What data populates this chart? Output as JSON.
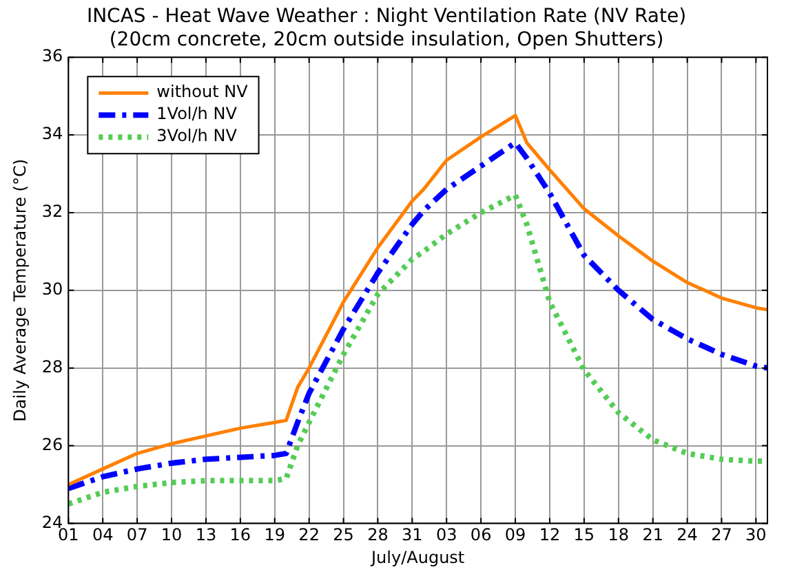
{
  "chart_data": {
    "type": "line",
    "title": "INCAS - Heat Wave Weather : Night Ventilation Rate (NV Rate)",
    "subtitle": "(20cm concrete, 20cm outside insulation, Open Shutters)",
    "xlabel": "July/August",
    "ylabel": "Daily Average Temperature (°C)",
    "x": [
      "--07-01",
      "--07-04",
      "--07-07",
      "--07-10",
      "--07-13",
      "--07-16",
      "--07-19",
      "--07-20",
      "--07-21",
      "--07-22",
      "--07-25",
      "--07-28",
      "--07-31",
      "--08-01",
      "--08-03",
      "--08-06",
      "--08-09",
      "--08-10",
      "--08-12",
      "--08-15",
      "--08-18",
      "--08-21",
      "--08-24",
      "--08-27",
      "--08-30",
      "--08-31"
    ],
    "series": [
      {
        "name": "without NV",
        "color": "#ff8000",
        "line_style": "solid",
        "values": [
          25.0,
          25.4,
          25.8,
          26.05,
          26.25,
          26.45,
          26.6,
          26.65,
          27.5,
          28.0,
          29.7,
          31.1,
          32.3,
          32.6,
          33.35,
          33.95,
          34.5,
          33.8,
          33.1,
          32.1,
          31.4,
          30.75,
          30.2,
          29.8,
          29.55,
          29.5
        ]
      },
      {
        "name": "1Vol/h NV",
        "color": "#0000ff",
        "line_style": "dashed",
        "values": [
          24.9,
          25.2,
          25.4,
          25.55,
          25.65,
          25.7,
          25.75,
          25.8,
          26.6,
          27.35,
          29.0,
          30.45,
          31.7,
          32.05,
          32.6,
          33.2,
          33.8,
          33.4,
          32.5,
          30.9,
          30.0,
          29.25,
          28.75,
          28.35,
          28.05,
          28.0
        ]
      },
      {
        "name": "3Vol/h NV",
        "color": "#55cc55",
        "line_style": "dotted",
        "values": [
          24.5,
          24.8,
          24.95,
          25.05,
          25.1,
          25.1,
          25.1,
          25.15,
          26.0,
          26.6,
          28.35,
          29.9,
          30.8,
          31.0,
          31.45,
          32.0,
          32.45,
          31.7,
          29.7,
          27.95,
          26.85,
          26.15,
          25.8,
          25.65,
          25.6,
          25.6
        ]
      }
    ],
    "xlim": [
      "--07-01",
      "--08-31"
    ],
    "xticks": [
      {
        "value": "--07-01",
        "label": "01"
      },
      {
        "value": "--07-04",
        "label": "04"
      },
      {
        "value": "--07-07",
        "label": "07"
      },
      {
        "value": "--07-10",
        "label": "10"
      },
      {
        "value": "--07-13",
        "label": "13"
      },
      {
        "value": "--07-16",
        "label": "16"
      },
      {
        "value": "--07-19",
        "label": "19"
      },
      {
        "value": "--07-22",
        "label": "22"
      },
      {
        "value": "--07-25",
        "label": "25"
      },
      {
        "value": "--07-28",
        "label": "28"
      },
      {
        "value": "--07-31",
        "label": "31"
      },
      {
        "value": "--08-03",
        "label": "03"
      },
      {
        "value": "--08-06",
        "label": "06"
      },
      {
        "value": "--08-09",
        "label": "09"
      },
      {
        "value": "--08-12",
        "label": "12"
      },
      {
        "value": "--08-15",
        "label": "15"
      },
      {
        "value": "--08-18",
        "label": "18"
      },
      {
        "value": "--08-21",
        "label": "21"
      },
      {
        "value": "--08-24",
        "label": "24"
      },
      {
        "value": "--08-27",
        "label": "27"
      },
      {
        "value": "--08-30",
        "label": "30"
      }
    ],
    "ylim": [
      24,
      36
    ],
    "yticks": [
      24,
      26,
      28,
      30,
      32,
      34,
      36
    ],
    "grid": true,
    "legend": "top left",
    "marker": "none"
  }
}
